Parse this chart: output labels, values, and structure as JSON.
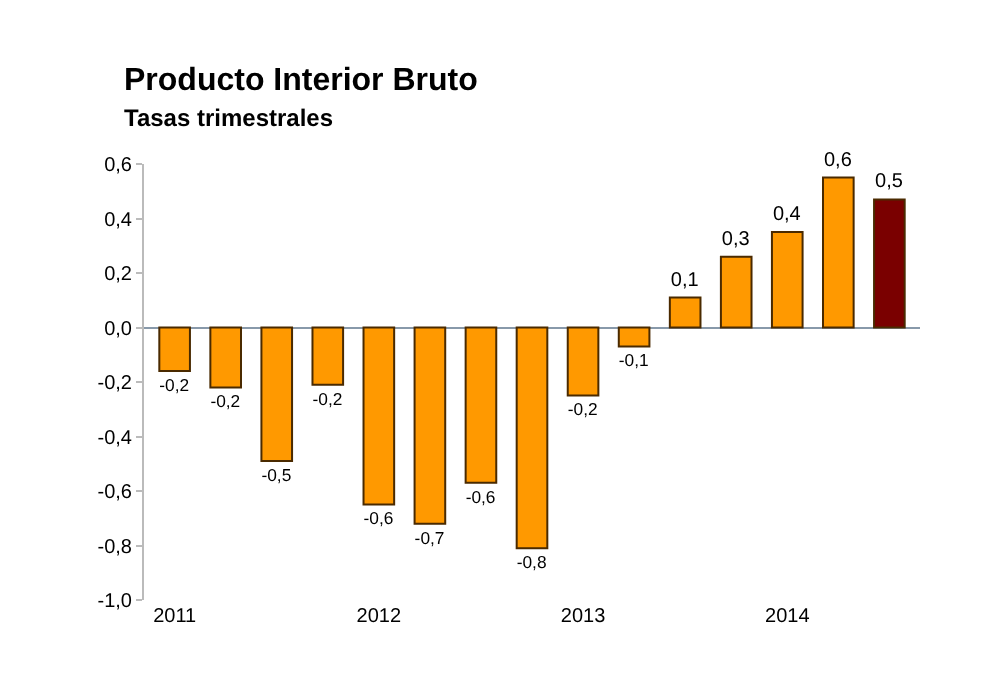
{
  "chart_data": {
    "type": "bar",
    "title": "Producto Interior Bruto",
    "subtitle": "Tasas trimestrales",
    "categories": [
      "2011",
      null,
      null,
      null,
      "2012",
      null,
      null,
      null,
      "2013",
      null,
      null,
      null,
      "2014",
      null,
      null
    ],
    "values": [
      -0.16,
      -0.22,
      -0.49,
      -0.21,
      -0.65,
      -0.72,
      -0.57,
      -0.81,
      -0.25,
      -0.07,
      0.11,
      0.26,
      0.35,
      0.55,
      0.47
    ],
    "colors": [
      "#ff9900",
      "#ff9900",
      "#ff9900",
      "#ff9900",
      "#ff9900",
      "#ff9900",
      "#ff9900",
      "#ff9900",
      "#ff9900",
      "#ff9900",
      "#ff9900",
      "#ff9900",
      "#ff9900",
      "#ff9900",
      "#7a0000"
    ],
    "value_labels": [
      "-0,2",
      "-0,2",
      "-0,5",
      "-0,2",
      "-0,6",
      "-0,7",
      "-0,6",
      "-0,8",
      "-0,2",
      "-0,1",
      "0,1",
      "0,3",
      "0,4",
      "0,6",
      "0,5"
    ],
    "ylim": [
      -1.0,
      0.6
    ],
    "yticks": [
      {
        "value": -1.0,
        "label": "-1,0"
      },
      {
        "value": -0.8,
        "label": "-0,8"
      },
      {
        "value": -0.6,
        "label": "-0,6"
      },
      {
        "value": -0.4,
        "label": "-0,4"
      },
      {
        "value": -0.2,
        "label": "-0,2"
      },
      {
        "value": 0.0,
        "label": "0,0"
      },
      {
        "value": 0.2,
        "label": "0,2"
      },
      {
        "value": 0.4,
        "label": "0,4"
      },
      {
        "value": 0.6,
        "label": "0,6"
      }
    ]
  }
}
